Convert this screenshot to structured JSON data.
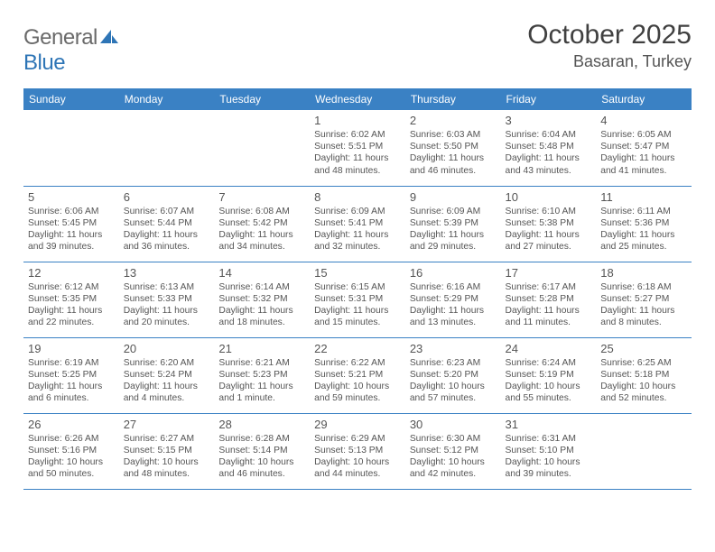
{
  "brand": {
    "part1": "General",
    "part2": "Blue"
  },
  "title": "October 2025",
  "location": "Basaran, Turkey",
  "weekdays": [
    "Sunday",
    "Monday",
    "Tuesday",
    "Wednesday",
    "Thursday",
    "Friday",
    "Saturday"
  ],
  "colors": {
    "header_bg": "#3a81c4",
    "header_text": "#ffffff",
    "text": "#555555",
    "border": "#3a81c4",
    "logo_gray": "#6a6a6a",
    "logo_blue": "#2e75b6"
  },
  "weeks": [
    [
      null,
      null,
      null,
      {
        "n": "1",
        "sr": "Sunrise: 6:02 AM",
        "ss": "Sunset: 5:51 PM",
        "d1": "Daylight: 11 hours",
        "d2": "and 48 minutes."
      },
      {
        "n": "2",
        "sr": "Sunrise: 6:03 AM",
        "ss": "Sunset: 5:50 PM",
        "d1": "Daylight: 11 hours",
        "d2": "and 46 minutes."
      },
      {
        "n": "3",
        "sr": "Sunrise: 6:04 AM",
        "ss": "Sunset: 5:48 PM",
        "d1": "Daylight: 11 hours",
        "d2": "and 43 minutes."
      },
      {
        "n": "4",
        "sr": "Sunrise: 6:05 AM",
        "ss": "Sunset: 5:47 PM",
        "d1": "Daylight: 11 hours",
        "d2": "and 41 minutes."
      }
    ],
    [
      {
        "n": "5",
        "sr": "Sunrise: 6:06 AM",
        "ss": "Sunset: 5:45 PM",
        "d1": "Daylight: 11 hours",
        "d2": "and 39 minutes."
      },
      {
        "n": "6",
        "sr": "Sunrise: 6:07 AM",
        "ss": "Sunset: 5:44 PM",
        "d1": "Daylight: 11 hours",
        "d2": "and 36 minutes."
      },
      {
        "n": "7",
        "sr": "Sunrise: 6:08 AM",
        "ss": "Sunset: 5:42 PM",
        "d1": "Daylight: 11 hours",
        "d2": "and 34 minutes."
      },
      {
        "n": "8",
        "sr": "Sunrise: 6:09 AM",
        "ss": "Sunset: 5:41 PM",
        "d1": "Daylight: 11 hours",
        "d2": "and 32 minutes."
      },
      {
        "n": "9",
        "sr": "Sunrise: 6:09 AM",
        "ss": "Sunset: 5:39 PM",
        "d1": "Daylight: 11 hours",
        "d2": "and 29 minutes."
      },
      {
        "n": "10",
        "sr": "Sunrise: 6:10 AM",
        "ss": "Sunset: 5:38 PM",
        "d1": "Daylight: 11 hours",
        "d2": "and 27 minutes."
      },
      {
        "n": "11",
        "sr": "Sunrise: 6:11 AM",
        "ss": "Sunset: 5:36 PM",
        "d1": "Daylight: 11 hours",
        "d2": "and 25 minutes."
      }
    ],
    [
      {
        "n": "12",
        "sr": "Sunrise: 6:12 AM",
        "ss": "Sunset: 5:35 PM",
        "d1": "Daylight: 11 hours",
        "d2": "and 22 minutes."
      },
      {
        "n": "13",
        "sr": "Sunrise: 6:13 AM",
        "ss": "Sunset: 5:33 PM",
        "d1": "Daylight: 11 hours",
        "d2": "and 20 minutes."
      },
      {
        "n": "14",
        "sr": "Sunrise: 6:14 AM",
        "ss": "Sunset: 5:32 PM",
        "d1": "Daylight: 11 hours",
        "d2": "and 18 minutes."
      },
      {
        "n": "15",
        "sr": "Sunrise: 6:15 AM",
        "ss": "Sunset: 5:31 PM",
        "d1": "Daylight: 11 hours",
        "d2": "and 15 minutes."
      },
      {
        "n": "16",
        "sr": "Sunrise: 6:16 AM",
        "ss": "Sunset: 5:29 PM",
        "d1": "Daylight: 11 hours",
        "d2": "and 13 minutes."
      },
      {
        "n": "17",
        "sr": "Sunrise: 6:17 AM",
        "ss": "Sunset: 5:28 PM",
        "d1": "Daylight: 11 hours",
        "d2": "and 11 minutes."
      },
      {
        "n": "18",
        "sr": "Sunrise: 6:18 AM",
        "ss": "Sunset: 5:27 PM",
        "d1": "Daylight: 11 hours",
        "d2": "and 8 minutes."
      }
    ],
    [
      {
        "n": "19",
        "sr": "Sunrise: 6:19 AM",
        "ss": "Sunset: 5:25 PM",
        "d1": "Daylight: 11 hours",
        "d2": "and 6 minutes."
      },
      {
        "n": "20",
        "sr": "Sunrise: 6:20 AM",
        "ss": "Sunset: 5:24 PM",
        "d1": "Daylight: 11 hours",
        "d2": "and 4 minutes."
      },
      {
        "n": "21",
        "sr": "Sunrise: 6:21 AM",
        "ss": "Sunset: 5:23 PM",
        "d1": "Daylight: 11 hours",
        "d2": "and 1 minute."
      },
      {
        "n": "22",
        "sr": "Sunrise: 6:22 AM",
        "ss": "Sunset: 5:21 PM",
        "d1": "Daylight: 10 hours",
        "d2": "and 59 minutes."
      },
      {
        "n": "23",
        "sr": "Sunrise: 6:23 AM",
        "ss": "Sunset: 5:20 PM",
        "d1": "Daylight: 10 hours",
        "d2": "and 57 minutes."
      },
      {
        "n": "24",
        "sr": "Sunrise: 6:24 AM",
        "ss": "Sunset: 5:19 PM",
        "d1": "Daylight: 10 hours",
        "d2": "and 55 minutes."
      },
      {
        "n": "25",
        "sr": "Sunrise: 6:25 AM",
        "ss": "Sunset: 5:18 PM",
        "d1": "Daylight: 10 hours",
        "d2": "and 52 minutes."
      }
    ],
    [
      {
        "n": "26",
        "sr": "Sunrise: 6:26 AM",
        "ss": "Sunset: 5:16 PM",
        "d1": "Daylight: 10 hours",
        "d2": "and 50 minutes."
      },
      {
        "n": "27",
        "sr": "Sunrise: 6:27 AM",
        "ss": "Sunset: 5:15 PM",
        "d1": "Daylight: 10 hours",
        "d2": "and 48 minutes."
      },
      {
        "n": "28",
        "sr": "Sunrise: 6:28 AM",
        "ss": "Sunset: 5:14 PM",
        "d1": "Daylight: 10 hours",
        "d2": "and 46 minutes."
      },
      {
        "n": "29",
        "sr": "Sunrise: 6:29 AM",
        "ss": "Sunset: 5:13 PM",
        "d1": "Daylight: 10 hours",
        "d2": "and 44 minutes."
      },
      {
        "n": "30",
        "sr": "Sunrise: 6:30 AM",
        "ss": "Sunset: 5:12 PM",
        "d1": "Daylight: 10 hours",
        "d2": "and 42 minutes."
      },
      {
        "n": "31",
        "sr": "Sunrise: 6:31 AM",
        "ss": "Sunset: 5:10 PM",
        "d1": "Daylight: 10 hours",
        "d2": "and 39 minutes."
      },
      null
    ]
  ]
}
